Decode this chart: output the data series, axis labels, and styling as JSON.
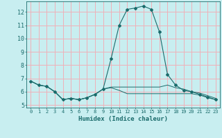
{
  "xlabel": "Humidex (Indice chaleur)",
  "background_color": "#c8eef0",
  "grid_color": "#f0b0b8",
  "line_color": "#1a6b6b",
  "x_ticks": [
    0,
    1,
    2,
    3,
    4,
    5,
    6,
    7,
    8,
    9,
    10,
    11,
    12,
    13,
    14,
    15,
    16,
    17,
    18,
    19,
    20,
    21,
    22,
    23
  ],
  "y_ticks": [
    5,
    6,
    7,
    8,
    9,
    10,
    11,
    12
  ],
  "ylim": [
    4.8,
    12.8
  ],
  "xlim": [
    -0.5,
    23.5
  ],
  "series": [
    {
      "x": [
        0,
        1,
        2,
        3,
        4,
        5,
        6,
        7,
        8,
        9,
        10,
        11,
        12,
        13,
        14,
        15,
        16,
        17,
        18,
        19,
        20,
        21,
        22,
        23
      ],
      "y": [
        6.8,
        6.5,
        6.4,
        6.0,
        5.4,
        5.5,
        5.4,
        5.55,
        5.8,
        6.2,
        6.35,
        6.35,
        6.35,
        6.35,
        6.35,
        6.35,
        6.35,
        6.5,
        6.3,
        6.2,
        6.0,
        5.9,
        5.7,
        5.5
      ],
      "with_markers": false
    },
    {
      "x": [
        0,
        1,
        2,
        3,
        4,
        5,
        6,
        7,
        8,
        9,
        10,
        11,
        12,
        13,
        14,
        15,
        16,
        17,
        18,
        19,
        20,
        21,
        22,
        23
      ],
      "y": [
        6.8,
        6.5,
        6.4,
        6.0,
        5.4,
        5.5,
        5.4,
        5.55,
        5.8,
        6.2,
        8.5,
        11.0,
        12.2,
        12.3,
        12.45,
        12.2,
        10.5,
        7.3,
        6.5,
        6.1,
        6.0,
        5.8,
        5.6,
        5.4
      ],
      "with_markers": true
    },
    {
      "x": [
        0,
        1,
        2,
        3,
        4,
        5,
        6,
        7,
        8,
        9,
        10,
        11,
        12,
        13,
        14,
        15,
        16,
        17,
        18,
        19,
        20,
        21,
        22,
        23
      ],
      "y": [
        6.8,
        6.5,
        6.4,
        6.0,
        5.4,
        5.5,
        5.4,
        5.55,
        5.8,
        6.2,
        6.3,
        6.1,
        5.85,
        5.85,
        5.85,
        5.85,
        5.85,
        5.85,
        5.85,
        5.85,
        5.85,
        5.75,
        5.55,
        5.4
      ],
      "with_markers": false
    }
  ]
}
